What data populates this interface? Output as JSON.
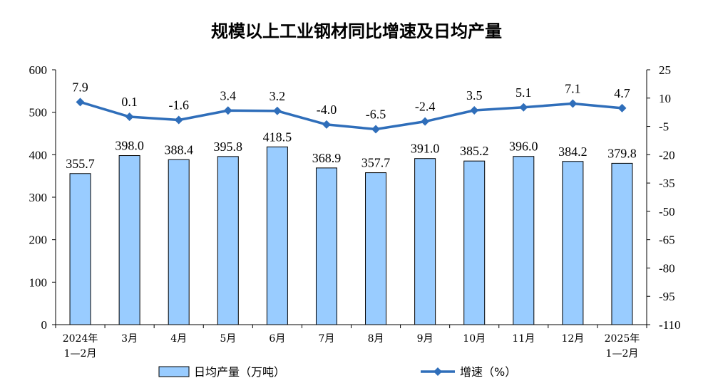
{
  "chart_data": {
    "type": "bar",
    "title": "规模以上工业钢材同比增速及日均产量",
    "categories": [
      [
        "2024年",
        "1—2月"
      ],
      [
        "3月"
      ],
      [
        "4月"
      ],
      [
        "5月"
      ],
      [
        "6月"
      ],
      [
        "7月"
      ],
      [
        "8月"
      ],
      [
        "9月"
      ],
      [
        "10月"
      ],
      [
        "11月"
      ],
      [
        "12月"
      ],
      [
        "2025年",
        "1—2月"
      ]
    ],
    "series": [
      {
        "name": "日均产量（万吨）",
        "type": "bar",
        "axis": "left",
        "values": [
          355.7,
          398.0,
          388.4,
          395.8,
          418.5,
          368.9,
          357.7,
          391.0,
          385.2,
          396.0,
          384.2,
          379.8
        ],
        "labels": [
          "355.7",
          "398.0",
          "388.4",
          "395.8",
          "418.5",
          "368.9",
          "357.7",
          "391.0",
          "385.2",
          "396.0",
          "384.2",
          "379.8"
        ],
        "color": "#99CCFF"
      },
      {
        "name": "增速（%）",
        "type": "line",
        "axis": "right",
        "values": [
          7.9,
          0.1,
          -1.6,
          3.4,
          3.2,
          -4.0,
          -6.5,
          -2.4,
          3.5,
          5.1,
          7.1,
          4.7
        ],
        "labels": [
          "7.9",
          "0.1",
          "-1.6",
          "3.4",
          "3.2",
          "-4.0",
          "-6.5",
          "-2.4",
          "3.5",
          "5.1",
          "7.1",
          "4.7"
        ],
        "color": "#2F6EBA"
      }
    ],
    "y_left": {
      "min": 0,
      "max": 600,
      "ticks": [
        0,
        100,
        200,
        300,
        400,
        500,
        600
      ]
    },
    "y_right": {
      "min": -110,
      "max": 25,
      "ticks": [
        25,
        10,
        -5,
        -20,
        -35,
        -50,
        -65,
        -80,
        -95,
        -110
      ]
    },
    "grid": false,
    "legend": "bottom"
  }
}
